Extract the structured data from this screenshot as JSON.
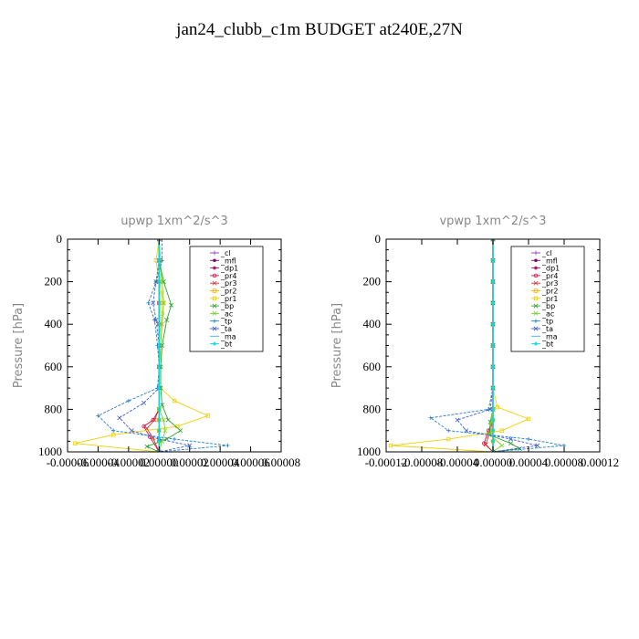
{
  "page": {
    "title": "jan24_clubb_c1m  BUDGET at240E,27N"
  },
  "legend_entries": [
    "_cl",
    "_mfl",
    "_dp1",
    "_pr4",
    "_pr3",
    "_pr2",
    "_pr1",
    "_bp",
    "_ac",
    "_tp",
    "_ta",
    "_ma",
    "_bt"
  ],
  "colors": {
    "_cl": "#8a3fbf",
    "_mfl": "#7a1060",
    "_dp1": "#b0186a",
    "_pr4": "#d01040",
    "_pr3": "#e03030",
    "_pr2": "#f0b000",
    "_pr1": "#f0d000",
    "_bp": "#30a030",
    "_ac": "#80d030",
    "_tp": "#2080c0",
    "_ta": "#4060d0",
    "_ma": "#40b0d0",
    "_bt": "#00e0e0"
  },
  "chart_data": [
    {
      "type": "line",
      "title": "upwp    1xm^2/s^3",
      "xlabel": "",
      "ylabel": "Pressure [hPa]",
      "xlim": [
        -6e-05,
        8e-05
      ],
      "ylim": [
        1000,
        0
      ],
      "xticks": [
        -6e-05,
        -4e-05,
        -2e-05,
        0,
        2e-05,
        4e-05,
        6e-05,
        8e-05
      ],
      "xtick_labels": [
        "-0.00006",
        "-0.00004",
        "-0.00002",
        "0.00000",
        "0.00002",
        "0.00004",
        "0.00006",
        "0.00008"
      ],
      "yticks": [
        0,
        200,
        400,
        600,
        800,
        1000
      ],
      "legend_position": "top-right",
      "series": [
        {
          "name": "_cl",
          "x": [
            0,
            0,
            0,
            0,
            0,
            0,
            0,
            0,
            0,
            0,
            0,
            0,
            0
          ],
          "y": [
            0,
            100,
            200,
            300,
            400,
            500,
            600,
            700,
            800,
            850,
            900,
            950,
            1000
          ]
        },
        {
          "name": "_mfl",
          "x": [
            0,
            0,
            0,
            0,
            0,
            0,
            0,
            0,
            0,
            0,
            0,
            0,
            0
          ],
          "y": [
            0,
            100,
            200,
            300,
            400,
            500,
            600,
            700,
            800,
            850,
            900,
            950,
            1000
          ]
        },
        {
          "name": "_dp1",
          "x": [
            0,
            0,
            0,
            0,
            0,
            0,
            0,
            0,
            0,
            0,
            0,
            0,
            0
          ],
          "y": [
            0,
            100,
            200,
            300,
            400,
            500,
            600,
            700,
            800,
            850,
            900,
            950,
            1000
          ]
        },
        {
          "name": "_pr4",
          "x": [
            0,
            0,
            0,
            0,
            0,
            0,
            0,
            0,
            0,
            -4e-06,
            -1e-05,
            -6e-06,
            0
          ],
          "y": [
            0,
            100,
            200,
            300,
            400,
            500,
            600,
            700,
            800,
            850,
            880,
            930,
            1000
          ]
        },
        {
          "name": "_pr3",
          "x": [
            0,
            0,
            0,
            0,
            0,
            0,
            0,
            0,
            0,
            -3e-06,
            -8e-06,
            -4e-06,
            0
          ],
          "y": [
            0,
            100,
            200,
            300,
            400,
            500,
            600,
            700,
            800,
            850,
            890,
            935,
            1000
          ]
        },
        {
          "name": "_pr2",
          "x": [
            0,
            1e-06,
            1e-06,
            1e-06,
            1e-06,
            0,
            0,
            0,
            0,
            0,
            0,
            0,
            0
          ],
          "y": [
            0,
            100,
            200,
            300,
            400,
            500,
            600,
            700,
            800,
            850,
            900,
            950,
            1000
          ]
        },
        {
          "name": "_pr1",
          "x": [
            0,
            -2e-06,
            0,
            3e-06,
            2e-06,
            1e-06,
            1e-06,
            1e-06,
            1e-05,
            3.2e-05,
            1.2e-05,
            -3e-05,
            -5.5e-05,
            0
          ],
          "y": [
            0,
            100,
            200,
            300,
            350,
            500,
            600,
            700,
            760,
            830,
            880,
            920,
            960,
            1000
          ]
        },
        {
          "name": "_bp",
          "x": [
            0,
            0,
            3e-06,
            8e-06,
            5e-06,
            2e-06,
            1e-06,
            1e-06,
            2e-06,
            6e-06,
            1.4e-05,
            5e-06,
            -8e-06,
            0
          ],
          "y": [
            0,
            100,
            200,
            310,
            380,
            500,
            600,
            700,
            780,
            850,
            900,
            940,
            975,
            1000
          ]
        },
        {
          "name": "_ac",
          "x": [
            0,
            0,
            2e-06,
            3e-06,
            2e-06,
            1e-06,
            0,
            0,
            0,
            3e-06,
            4e-06,
            2e-06,
            0
          ],
          "y": [
            0,
            100,
            200,
            300,
            400,
            500,
            600,
            700,
            800,
            850,
            900,
            950,
            1000
          ]
        },
        {
          "name": "_tp",
          "x": [
            2e-06,
            2e-06,
            -2e-06,
            -7e-06,
            -3e-06,
            -1e-06,
            0,
            -1e-06,
            -2e-05,
            -4e-05,
            -3e-05,
            1e-05,
            4.5e-05,
            0
          ],
          "y": [
            0,
            100,
            200,
            300,
            380,
            500,
            600,
            700,
            760,
            830,
            900,
            940,
            970,
            1000
          ]
        },
        {
          "name": "_ta",
          "x": [
            0,
            0,
            -2e-06,
            -4e-06,
            -2e-06,
            0,
            0,
            0,
            -1e-05,
            -2.6e-05,
            -1.8e-05,
            0,
            2e-05,
            0
          ],
          "y": [
            0,
            100,
            200,
            300,
            380,
            500,
            600,
            700,
            770,
            840,
            900,
            940,
            970,
            1000
          ]
        },
        {
          "name": "_ma",
          "x": [
            0,
            0,
            0,
            0,
            0,
            0,
            0,
            0,
            0,
            0,
            0,
            0,
            0
          ],
          "y": [
            0,
            100,
            200,
            300,
            400,
            500,
            600,
            700,
            800,
            850,
            900,
            950,
            1000
          ]
        },
        {
          "name": "_bt",
          "x": [
            0,
            0,
            0,
            0,
            0,
            0,
            0,
            0,
            0,
            0,
            0,
            0,
            0
          ],
          "y": [
            0,
            100,
            200,
            300,
            400,
            500,
            600,
            700,
            800,
            850,
            900,
            950,
            1000
          ]
        }
      ]
    },
    {
      "type": "line",
      "title": "vpwp    1xm^2/s^3",
      "xlabel": "",
      "ylabel": "Pressure [hPa]",
      "xlim": [
        -0.00012,
        0.00012
      ],
      "ylim": [
        1000,
        0
      ],
      "xticks": [
        -0.00012,
        -8e-05,
        -4e-05,
        0,
        4e-05,
        8e-05,
        0.00012
      ],
      "xtick_labels": [
        "-0.00012",
        "-0.00008",
        "-0.00004",
        "0.00000",
        "0.00004",
        "0.00008",
        "0.00012"
      ],
      "yticks": [
        0,
        200,
        400,
        600,
        800,
        1000
      ],
      "legend_position": "top-right",
      "series": [
        {
          "name": "_cl",
          "x": [
            0,
            0,
            0,
            0,
            0,
            0,
            0,
            0,
            0,
            0,
            0,
            0,
            0
          ],
          "y": [
            0,
            100,
            200,
            300,
            400,
            500,
            600,
            700,
            800,
            850,
            900,
            950,
            1000
          ]
        },
        {
          "name": "_mfl",
          "x": [
            0,
            0,
            0,
            0,
            0,
            0,
            0,
            0,
            0,
            0,
            0,
            0,
            0
          ],
          "y": [
            0,
            100,
            200,
            300,
            400,
            500,
            600,
            700,
            800,
            850,
            900,
            950,
            1000
          ]
        },
        {
          "name": "_dp1",
          "x": [
            0,
            0,
            0,
            0,
            0,
            0,
            0,
            0,
            0,
            0,
            0,
            0,
            0
          ],
          "y": [
            0,
            100,
            200,
            300,
            400,
            500,
            600,
            700,
            800,
            850,
            900,
            950,
            1000
          ]
        },
        {
          "name": "_pr4",
          "x": [
            0,
            0,
            0,
            0,
            0,
            0,
            0,
            0,
            0,
            0,
            -5e-06,
            -1e-05,
            0
          ],
          "y": [
            0,
            100,
            200,
            300,
            400,
            500,
            600,
            700,
            800,
            850,
            900,
            960,
            1000
          ]
        },
        {
          "name": "_pr3",
          "x": [
            0,
            0,
            0,
            0,
            0,
            0,
            0,
            0,
            0,
            0,
            -3e-06,
            -8e-06,
            0
          ],
          "y": [
            0,
            100,
            200,
            300,
            400,
            500,
            600,
            700,
            800,
            850,
            900,
            965,
            1000
          ]
        },
        {
          "name": "_pr2",
          "x": [
            0,
            0,
            0,
            0,
            0,
            0,
            0,
            0,
            0,
            0,
            0,
            0,
            0
          ],
          "y": [
            0,
            100,
            200,
            300,
            400,
            500,
            600,
            700,
            800,
            850,
            900,
            950,
            1000
          ]
        },
        {
          "name": "_pr1",
          "x": [
            0,
            0,
            0,
            0,
            0,
            0,
            0,
            0,
            5e-06,
            4e-05,
            1e-05,
            -5e-05,
            -0.000115,
            0
          ],
          "y": [
            0,
            100,
            200,
            300,
            400,
            500,
            600,
            700,
            790,
            845,
            900,
            940,
            970,
            1000
          ]
        },
        {
          "name": "_bp",
          "x": [
            0,
            0,
            0,
            0,
            0,
            0,
            0,
            0,
            0,
            -3e-06,
            -4e-06,
            2e-05,
            3e-05,
            0
          ],
          "y": [
            0,
            100,
            200,
            300,
            400,
            500,
            600,
            700,
            800,
            860,
            920,
            960,
            985,
            1000
          ]
        },
        {
          "name": "_ac",
          "x": [
            0,
            0,
            0,
            0,
            0,
            0,
            0,
            0,
            0,
            -2e-06,
            -3e-06,
            1e-05,
            0
          ],
          "y": [
            0,
            100,
            200,
            300,
            400,
            500,
            600,
            700,
            800,
            860,
            920,
            970,
            1000
          ]
        },
        {
          "name": "_tp",
          "x": [
            0,
            0,
            0,
            0,
            0,
            0,
            0,
            0,
            -5e-06,
            -7e-05,
            -5e-05,
            4e-05,
            8e-05,
            0
          ],
          "y": [
            0,
            100,
            200,
            300,
            400,
            500,
            600,
            700,
            800,
            840,
            900,
            940,
            970,
            1000
          ]
        },
        {
          "name": "_ta",
          "x": [
            0,
            0,
            0,
            0,
            0,
            0,
            0,
            0,
            -3e-06,
            -4e-05,
            -3e-05,
            2e-05,
            5e-05,
            0
          ],
          "y": [
            0,
            100,
            200,
            300,
            400,
            500,
            600,
            700,
            800,
            850,
            900,
            940,
            970,
            1000
          ]
        },
        {
          "name": "_ma",
          "x": [
            0,
            0,
            0,
            0,
            0,
            0,
            0,
            0,
            0,
            0,
            0,
            0,
            0
          ],
          "y": [
            0,
            100,
            200,
            300,
            400,
            500,
            600,
            700,
            800,
            850,
            900,
            950,
            1000
          ]
        },
        {
          "name": "_bt",
          "x": [
            0,
            0,
            0,
            0,
            0,
            0,
            0,
            0,
            0,
            0,
            0,
            0,
            0
          ],
          "y": [
            0,
            100,
            200,
            300,
            400,
            500,
            600,
            700,
            800,
            850,
            900,
            950,
            1000
          ]
        }
      ]
    }
  ]
}
